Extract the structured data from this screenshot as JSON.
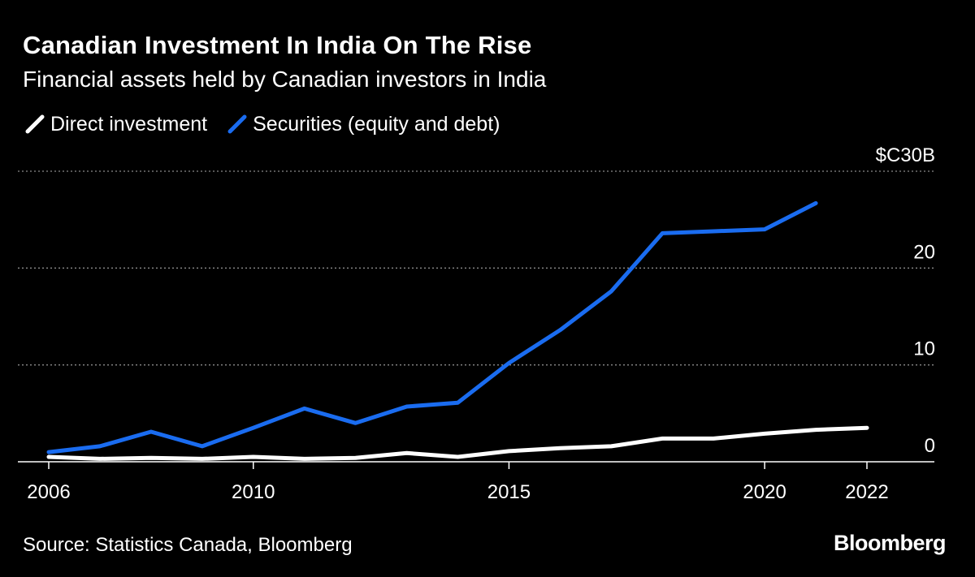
{
  "header": {
    "title": "Canadian Investment In India On The Rise",
    "subtitle": "Financial assets held by Canadian investors in India"
  },
  "legend": {
    "items": [
      {
        "label": "Direct investment",
        "color": "#ffffff"
      },
      {
        "label": "Securities (equity and debt)",
        "color": "#1a6cf0"
      }
    ]
  },
  "chart_data": {
    "type": "line",
    "title": "Canadian Investment In India On The Rise",
    "subtitle": "Financial assets held by Canadian investors in India",
    "xlabel": "",
    "ylabel": "$C billions",
    "xlim": [
      2006,
      2022.8
    ],
    "ylim": [
      0,
      30
    ],
    "y_ticks": [
      {
        "value": 0,
        "label": "0"
      },
      {
        "value": 10,
        "label": "10"
      },
      {
        "value": 20,
        "label": "20"
      },
      {
        "value": 30,
        "label": "$C30B"
      }
    ],
    "x_ticks": [
      {
        "value": 2006,
        "label": "2006"
      },
      {
        "value": 2010,
        "label": "2010"
      },
      {
        "value": 2015,
        "label": "2015"
      },
      {
        "value": 2020,
        "label": "2020"
      },
      {
        "value": 2022,
        "label": "2022"
      }
    ],
    "grid": "horizontal dotted",
    "legend_position": "top-left",
    "series": [
      {
        "name": "Direct investment",
        "color": "#ffffff",
        "x": [
          2006,
          2007,
          2008,
          2009,
          2010,
          2011,
          2012,
          2013,
          2014,
          2015,
          2016,
          2017,
          2018,
          2019,
          2020,
          2021,
          2022
        ],
        "values": [
          0.5,
          0.3,
          0.4,
          0.3,
          0.5,
          0.3,
          0.4,
          0.9,
          0.5,
          1.1,
          1.4,
          1.6,
          2.4,
          2.4,
          2.9,
          3.3,
          3.5
        ]
      },
      {
        "name": "Securities (equity and debt)",
        "color": "#1a6cf0",
        "x": [
          2006,
          2007,
          2008,
          2009,
          2010,
          2011,
          2012,
          2013,
          2014,
          2015,
          2016,
          2017,
          2018,
          2019,
          2020,
          2021
        ],
        "values": [
          1.0,
          1.6,
          3.1,
          1.6,
          3.5,
          5.5,
          4.0,
          5.7,
          6.1,
          10.2,
          13.6,
          17.6,
          23.6,
          23.8,
          24.0,
          26.7
        ]
      }
    ]
  },
  "footer": {
    "source": "Source: Statistics Canada, Bloomberg",
    "brand": "Bloomberg"
  }
}
